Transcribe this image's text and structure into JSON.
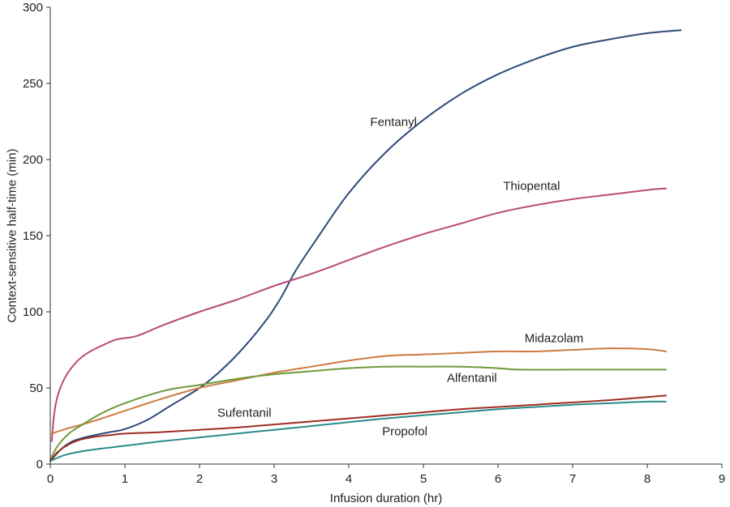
{
  "chart_data": {
    "type": "line",
    "title": "",
    "xlabel": "Infusion duration (hr)",
    "ylabel": "Context-sensitive half-time (min)",
    "xlim": [
      0,
      9
    ],
    "ylim": [
      0,
      300
    ],
    "xticks": [
      "0",
      "1",
      "2",
      "3",
      "4",
      "5",
      "6",
      "7",
      "8",
      "9"
    ],
    "yticks": [
      "0",
      "50",
      "100",
      "150",
      "200",
      "250",
      "300"
    ],
    "grid": false,
    "legend": "none",
    "series": [
      {
        "name": "Fentanyl",
        "color": "#2f4a7a",
        "label_at": [
          4.6,
          222
        ],
        "points": [
          [
            0,
            2
          ],
          [
            0.15,
            10
          ],
          [
            0.3,
            15
          ],
          [
            0.5,
            18
          ],
          [
            0.8,
            21
          ],
          [
            1.0,
            23
          ],
          [
            1.3,
            29
          ],
          [
            1.6,
            38
          ],
          [
            2.0,
            50
          ],
          [
            2.3,
            62
          ],
          [
            2.6,
            77
          ],
          [
            2.9,
            95
          ],
          [
            3.1,
            110
          ],
          [
            3.3,
            128
          ],
          [
            3.6,
            150
          ],
          [
            4.0,
            178
          ],
          [
            4.5,
            205
          ],
          [
            5.0,
            226
          ],
          [
            5.5,
            243
          ],
          [
            6.0,
            256
          ],
          [
            6.5,
            266
          ],
          [
            7.0,
            274
          ],
          [
            7.5,
            279
          ],
          [
            8.0,
            283
          ],
          [
            8.45,
            285
          ]
        ]
      },
      {
        "name": "Thiopental",
        "color": "#b84a74",
        "label_at": [
          6.45,
          180
        ],
        "points": [
          [
            0.02,
            15
          ],
          [
            0.05,
            32
          ],
          [
            0.1,
            45
          ],
          [
            0.2,
            57
          ],
          [
            0.35,
            67
          ],
          [
            0.5,
            73
          ],
          [
            0.7,
            78
          ],
          [
            0.9,
            82
          ],
          [
            1.15,
            84
          ],
          [
            1.5,
            91
          ],
          [
            2.0,
            100
          ],
          [
            2.5,
            108
          ],
          [
            3.0,
            117
          ],
          [
            3.5,
            125
          ],
          [
            4.0,
            134
          ],
          [
            4.5,
            143
          ],
          [
            5.0,
            151
          ],
          [
            5.5,
            158
          ],
          [
            6.0,
            165
          ],
          [
            6.5,
            170
          ],
          [
            7.0,
            174
          ],
          [
            7.5,
            177
          ],
          [
            8.0,
            180
          ],
          [
            8.25,
            181
          ]
        ]
      },
      {
        "name": "Midazolam",
        "color": "#cc7a3e",
        "label_at": [
          6.75,
          80
        ],
        "points": [
          [
            0.02,
            20
          ],
          [
            0.2,
            23
          ],
          [
            0.5,
            27
          ],
          [
            1.0,
            35
          ],
          [
            1.5,
            43
          ],
          [
            2.0,
            50
          ],
          [
            2.5,
            55
          ],
          [
            3.0,
            60
          ],
          [
            3.5,
            64
          ],
          [
            4.0,
            68
          ],
          [
            4.5,
            71
          ],
          [
            5.0,
            72
          ],
          [
            5.5,
            73
          ],
          [
            6.0,
            74
          ],
          [
            6.5,
            74
          ],
          [
            7.0,
            75
          ],
          [
            7.5,
            76
          ],
          [
            8.0,
            75.5
          ],
          [
            8.25,
            74
          ]
        ]
      },
      {
        "name": "Alfentanil",
        "color": "#6f9a3a",
        "label_at": [
          5.65,
          54
        ],
        "points": [
          [
            0,
            3
          ],
          [
            0.1,
            12
          ],
          [
            0.25,
            20
          ],
          [
            0.4,
            25
          ],
          [
            0.6,
            31
          ],
          [
            0.8,
            36
          ],
          [
            1.0,
            40
          ],
          [
            1.3,
            45
          ],
          [
            1.6,
            49
          ],
          [
            2.0,
            52
          ],
          [
            2.5,
            56
          ],
          [
            3.0,
            59
          ],
          [
            3.5,
            61
          ],
          [
            4.0,
            63
          ],
          [
            4.5,
            64
          ],
          [
            5.0,
            64
          ],
          [
            5.5,
            64
          ],
          [
            6.0,
            63
          ],
          [
            6.3,
            62
          ],
          [
            7.0,
            62
          ],
          [
            8.0,
            62
          ],
          [
            8.25,
            62
          ]
        ]
      },
      {
        "name": "Sufentanil",
        "color": "#9e2e22",
        "label_at": [
          2.6,
          31
        ],
        "points": [
          [
            0,
            2
          ],
          [
            0.1,
            8
          ],
          [
            0.25,
            13
          ],
          [
            0.4,
            16
          ],
          [
            0.6,
            18
          ],
          [
            0.8,
            19
          ],
          [
            1.0,
            20
          ],
          [
            1.5,
            21
          ],
          [
            2.0,
            22.5
          ],
          [
            2.5,
            24
          ],
          [
            3.0,
            26
          ],
          [
            3.5,
            28
          ],
          [
            4.0,
            30
          ],
          [
            4.5,
            32
          ],
          [
            5.0,
            34
          ],
          [
            5.5,
            36
          ],
          [
            6.0,
            37.5
          ],
          [
            6.5,
            39
          ],
          [
            7.0,
            40.5
          ],
          [
            7.5,
            42
          ],
          [
            8.0,
            44
          ],
          [
            8.25,
            45
          ]
        ]
      },
      {
        "name": "Propofol",
        "color": "#2a8a8c",
        "label_at": [
          4.75,
          19
        ],
        "points": [
          [
            0,
            2
          ],
          [
            0.2,
            6
          ],
          [
            0.5,
            9
          ],
          [
            1.0,
            12
          ],
          [
            1.5,
            15
          ],
          [
            2.0,
            17.5
          ],
          [
            2.5,
            20
          ],
          [
            3.0,
            22.5
          ],
          [
            3.5,
            25
          ],
          [
            4.0,
            27.5
          ],
          [
            4.5,
            30
          ],
          [
            5.0,
            32
          ],
          [
            5.5,
            34
          ],
          [
            6.0,
            36
          ],
          [
            6.5,
            37.5
          ],
          [
            7.0,
            39
          ],
          [
            7.5,
            40
          ],
          [
            8.0,
            41
          ],
          [
            8.25,
            41
          ]
        ]
      }
    ]
  }
}
